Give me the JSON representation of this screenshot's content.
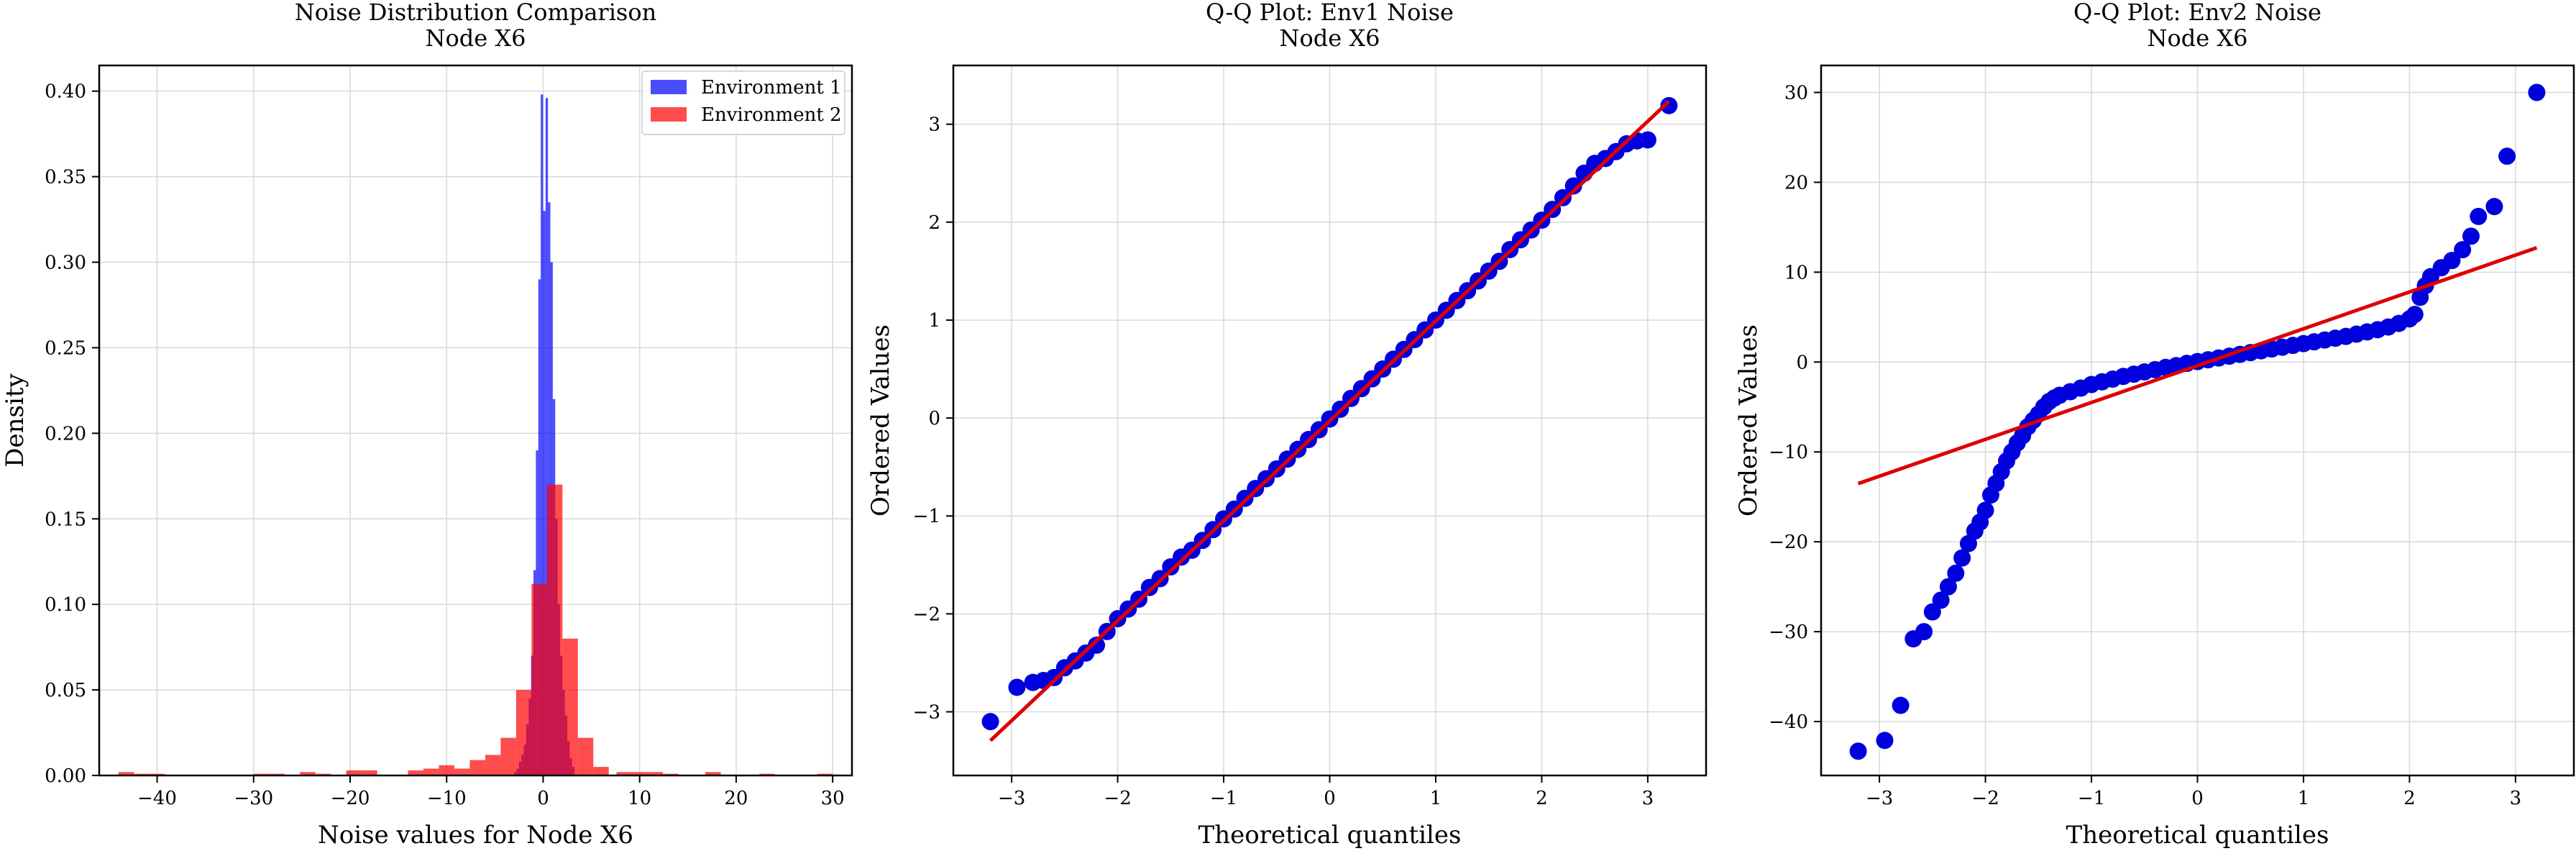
{
  "chart_data": [
    {
      "type": "histogram",
      "title": "Noise Distribution Comparison",
      "subtitle": "Node X6",
      "xlabel": "Noise values for Node X6",
      "ylabel": "Density",
      "xlim": [
        -46,
        32
      ],
      "ylim": [
        0,
        0.415
      ],
      "xticks": [
        -40,
        -30,
        -20,
        -10,
        0,
        10,
        20,
        30
      ],
      "xtick_labels": [
        "−40",
        "−30",
        "−20",
        "−10",
        "0",
        "10",
        "20",
        "30"
      ],
      "yticks": [
        0,
        0.05,
        0.1,
        0.15,
        0.2,
        0.25,
        0.3,
        0.35,
        0.4
      ],
      "ytick_labels": [
        "0.00",
        "0.05",
        "0.10",
        "0.15",
        "0.20",
        "0.25",
        "0.30",
        "0.35",
        "0.40"
      ],
      "grid": true,
      "legend_position": "top-right",
      "series": [
        {
          "name": "Environment 1",
          "color": "#0000ff",
          "opacity": 0.7,
          "bins": [
            [
              -3.0,
              -2.75,
              0.002
            ],
            [
              -2.75,
              -2.5,
              0.004
            ],
            [
              -2.5,
              -2.25,
              0.008
            ],
            [
              -2.25,
              -2.0,
              0.012
            ],
            [
              -2.0,
              -1.75,
              0.018
            ],
            [
              -1.75,
              -1.5,
              0.03
            ],
            [
              -1.5,
              -1.25,
              0.045
            ],
            [
              -1.25,
              -1.0,
              0.07
            ],
            [
              -1.0,
              -0.75,
              0.12
            ],
            [
              -0.75,
              -0.5,
              0.19
            ],
            [
              -0.5,
              -0.25,
              0.29
            ],
            [
              -0.25,
              0.0,
              0.398
            ],
            [
              0.0,
              0.25,
              0.33
            ],
            [
              0.25,
              0.5,
              0.396
            ],
            [
              0.5,
              0.75,
              0.335
            ],
            [
              0.75,
              1.0,
              0.3
            ],
            [
              1.0,
              1.25,
              0.22
            ],
            [
              1.25,
              1.5,
              0.15
            ],
            [
              1.5,
              1.75,
              0.1
            ],
            [
              1.75,
              2.0,
              0.07
            ],
            [
              2.0,
              2.25,
              0.05
            ],
            [
              2.25,
              2.5,
              0.035
            ],
            [
              2.5,
              2.75,
              0.02
            ],
            [
              2.75,
              3.0,
              0.01
            ],
            [
              3.0,
              3.25,
              0.005
            ]
          ]
        },
        {
          "name": "Environment 2",
          "color": "#ff0000",
          "opacity": 0.7,
          "bins": [
            [
              -44.0,
              -42.4,
              0.002
            ],
            [
              -42.4,
              -40.8,
              0.001
            ],
            [
              -40.8,
              -39.2,
              0.001
            ],
            [
              -30.0,
              -28.4,
              0.001
            ],
            [
              -28.4,
              -26.8,
              0.001
            ],
            [
              -25.2,
              -23.6,
              0.002
            ],
            [
              -23.6,
              -22.0,
              0.001
            ],
            [
              -20.4,
              -18.8,
              0.003
            ],
            [
              -18.8,
              -17.2,
              0.003
            ],
            [
              -14.0,
              -12.4,
              0.003
            ],
            [
              -12.4,
              -10.8,
              0.004
            ],
            [
              -10.8,
              -9.2,
              0.006
            ],
            [
              -9.2,
              -7.6,
              0.004
            ],
            [
              -7.6,
              -6.0,
              0.009
            ],
            [
              -6.0,
              -4.4,
              0.012
            ],
            [
              -4.4,
              -2.8,
              0.022
            ],
            [
              -2.8,
              -1.2,
              0.05
            ],
            [
              -1.2,
              0.4,
              0.112
            ],
            [
              0.4,
              2.0,
              0.17
            ],
            [
              2.0,
              3.6,
              0.08
            ],
            [
              3.6,
              5.2,
              0.022
            ],
            [
              5.2,
              6.8,
              0.005
            ],
            [
              7.6,
              9.2,
              0.002
            ],
            [
              9.2,
              10.8,
              0.002
            ],
            [
              10.8,
              12.4,
              0.002
            ],
            [
              12.4,
              14.0,
              0.001
            ],
            [
              16.8,
              18.4,
              0.002
            ],
            [
              22.4,
              24.0,
              0.001
            ],
            [
              28.4,
              30.0,
              0.001
            ]
          ]
        }
      ]
    },
    {
      "type": "scatter",
      "title": "Q-Q Plot: Env1 Noise",
      "subtitle": "Node X6",
      "xlabel": "Theoretical quantiles",
      "ylabel": "Ordered Values",
      "xlim": [
        -3.55,
        3.55
      ],
      "ylim": [
        -3.65,
        3.6
      ],
      "xticks": [
        -3,
        -2,
        -1,
        0,
        1,
        2,
        3
      ],
      "xtick_labels": [
        "−3",
        "−2",
        "−1",
        "0",
        "1",
        "2",
        "3"
      ],
      "yticks": [
        -3,
        -2,
        -1,
        0,
        1,
        2,
        3
      ],
      "ytick_labels": [
        "−3",
        "−2",
        "−1",
        "0",
        "1",
        "2",
        "3"
      ],
      "grid": true,
      "points_color": "#0000dd",
      "line_color": "#dd0000",
      "fit_line": {
        "slope": 1.02,
        "intercept": -0.03,
        "x_range": [
          -3.2,
          3.2
        ]
      },
      "points": [
        [
          -3.2,
          -3.1
        ],
        [
          -2.95,
          -2.75
        ],
        [
          -2.8,
          -2.7
        ],
        [
          -2.7,
          -2.68
        ],
        [
          -2.6,
          -2.65
        ],
        [
          -2.5,
          -2.55
        ],
        [
          -2.4,
          -2.48
        ],
        [
          -2.3,
          -2.4
        ],
        [
          -2.2,
          -2.32
        ],
        [
          -2.1,
          -2.18
        ],
        [
          -2.0,
          -2.05
        ],
        [
          -1.9,
          -1.95
        ],
        [
          -1.8,
          -1.85
        ],
        [
          -1.7,
          -1.73
        ],
        [
          -1.6,
          -1.64
        ],
        [
          -1.5,
          -1.52
        ],
        [
          -1.4,
          -1.42
        ],
        [
          -1.3,
          -1.35
        ],
        [
          -1.2,
          -1.25
        ],
        [
          -1.1,
          -1.14
        ],
        [
          -1.0,
          -1.03
        ],
        [
          -0.9,
          -0.93
        ],
        [
          -0.8,
          -0.82
        ],
        [
          -0.7,
          -0.72
        ],
        [
          -0.6,
          -0.62
        ],
        [
          -0.5,
          -0.52
        ],
        [
          -0.4,
          -0.42
        ],
        [
          -0.3,
          -0.32
        ],
        [
          -0.2,
          -0.22
        ],
        [
          -0.1,
          -0.12
        ],
        [
          0.0,
          -0.01
        ],
        [
          0.1,
          0.09
        ],
        [
          0.2,
          0.2
        ],
        [
          0.3,
          0.3
        ],
        [
          0.4,
          0.4
        ],
        [
          0.5,
          0.5
        ],
        [
          0.6,
          0.6
        ],
        [
          0.7,
          0.7
        ],
        [
          0.8,
          0.8
        ],
        [
          0.9,
          0.9
        ],
        [
          1.0,
          1.0
        ],
        [
          1.1,
          1.1
        ],
        [
          1.2,
          1.2
        ],
        [
          1.3,
          1.3
        ],
        [
          1.4,
          1.4
        ],
        [
          1.5,
          1.5
        ],
        [
          1.6,
          1.6
        ],
        [
          1.7,
          1.72
        ],
        [
          1.8,
          1.82
        ],
        [
          1.9,
          1.92
        ],
        [
          2.0,
          2.02
        ],
        [
          2.1,
          2.13
        ],
        [
          2.2,
          2.25
        ],
        [
          2.3,
          2.37
        ],
        [
          2.4,
          2.5
        ],
        [
          2.5,
          2.6
        ],
        [
          2.6,
          2.65
        ],
        [
          2.7,
          2.72
        ],
        [
          2.8,
          2.8
        ],
        [
          2.9,
          2.83
        ],
        [
          3.0,
          2.84
        ],
        [
          3.2,
          3.19
        ]
      ]
    },
    {
      "type": "scatter",
      "title": "Q-Q Plot: Env2 Noise",
      "subtitle": "Node X6",
      "xlabel": "Theoretical quantiles",
      "ylabel": "Ordered Values",
      "xlim": [
        -3.55,
        3.55
      ],
      "ylim": [
        -46,
        33
      ],
      "xticks": [
        -3,
        -2,
        -1,
        0,
        1,
        2,
        3
      ],
      "xtick_labels": [
        "−3",
        "−2",
        "−1",
        "0",
        "1",
        "2",
        "3"
      ],
      "yticks": [
        -40,
        -30,
        -20,
        -10,
        0,
        10,
        20,
        30
      ],
      "ytick_labels": [
        "−40",
        "−30",
        "−20",
        "−10",
        "0",
        "10",
        "20",
        "30"
      ],
      "grid": true,
      "points_color": "#0000dd",
      "line_color": "#dd0000",
      "fit_line": {
        "slope": 4.1,
        "intercept": -0.4,
        "x_range": [
          -3.2,
          3.2
        ]
      },
      "points": [
        [
          -3.2,
          -43.3
        ],
        [
          -2.95,
          -42.1
        ],
        [
          -2.8,
          -38.2
        ],
        [
          -2.68,
          -30.8
        ],
        [
          -2.58,
          -30.0
        ],
        [
          -2.5,
          -27.8
        ],
        [
          -2.42,
          -26.5
        ],
        [
          -2.35,
          -25.0
        ],
        [
          -2.28,
          -23.5
        ],
        [
          -2.22,
          -21.8
        ],
        [
          -2.16,
          -20.2
        ],
        [
          -2.1,
          -18.8
        ],
        [
          -2.05,
          -17.8
        ],
        [
          -2.0,
          -16.5
        ],
        [
          -1.95,
          -14.8
        ],
        [
          -1.9,
          -13.5
        ],
        [
          -1.85,
          -12.2
        ],
        [
          -1.8,
          -11.0
        ],
        [
          -1.75,
          -10.0
        ],
        [
          -1.7,
          -9.0
        ],
        [
          -1.65,
          -8.2
        ],
        [
          -1.6,
          -7.2
        ],
        [
          -1.55,
          -6.5
        ],
        [
          -1.5,
          -5.8
        ],
        [
          -1.45,
          -5.0
        ],
        [
          -1.4,
          -4.4
        ],
        [
          -1.35,
          -4.0
        ],
        [
          -1.3,
          -3.7
        ],
        [
          -1.2,
          -3.3
        ],
        [
          -1.1,
          -2.9
        ],
        [
          -1.0,
          -2.5
        ],
        [
          -0.9,
          -2.2
        ],
        [
          -0.8,
          -1.9
        ],
        [
          -0.7,
          -1.6
        ],
        [
          -0.6,
          -1.35
        ],
        [
          -0.5,
          -1.1
        ],
        [
          -0.4,
          -0.85
        ],
        [
          -0.3,
          -0.6
        ],
        [
          -0.2,
          -0.4
        ],
        [
          -0.1,
          -0.15
        ],
        [
          0.0,
          0.05
        ],
        [
          0.1,
          0.25
        ],
        [
          0.2,
          0.45
        ],
        [
          0.3,
          0.65
        ],
        [
          0.4,
          0.85
        ],
        [
          0.5,
          1.05
        ],
        [
          0.6,
          1.25
        ],
        [
          0.7,
          1.45
        ],
        [
          0.8,
          1.65
        ],
        [
          0.9,
          1.85
        ],
        [
          1.0,
          2.05
        ],
        [
          1.1,
          2.25
        ],
        [
          1.2,
          2.45
        ],
        [
          1.3,
          2.65
        ],
        [
          1.4,
          2.85
        ],
        [
          1.5,
          3.1
        ],
        [
          1.6,
          3.35
        ],
        [
          1.7,
          3.6
        ],
        [
          1.8,
          3.9
        ],
        [
          1.9,
          4.3
        ],
        [
          2.0,
          4.8
        ],
        [
          2.05,
          5.3
        ],
        [
          2.1,
          7.2
        ],
        [
          2.15,
          8.5
        ],
        [
          2.2,
          9.5
        ],
        [
          2.3,
          10.5
        ],
        [
          2.4,
          11.3
        ],
        [
          2.5,
          12.5
        ],
        [
          2.58,
          14.0
        ],
        [
          2.65,
          16.2
        ],
        [
          2.8,
          17.3
        ],
        [
          2.92,
          22.9
        ],
        [
          3.2,
          30.0
        ]
      ]
    }
  ]
}
